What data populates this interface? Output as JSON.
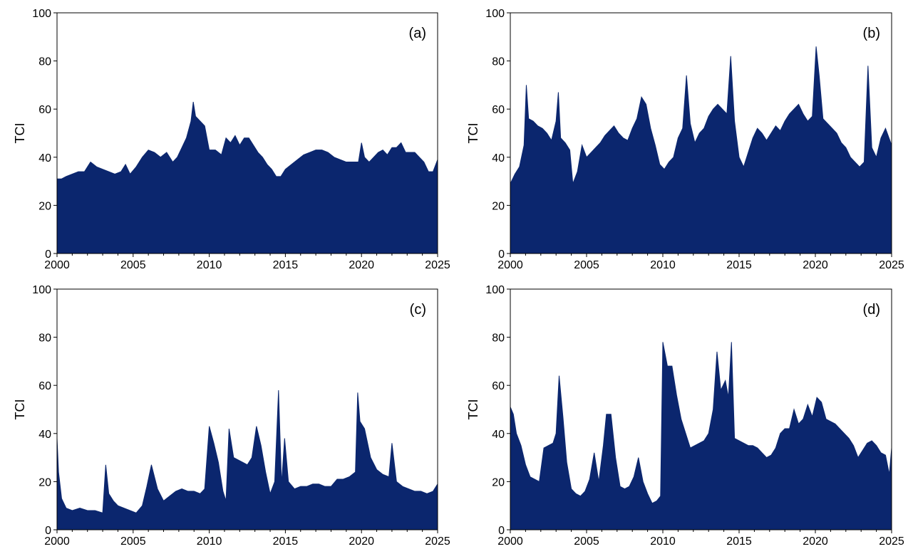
{
  "fill_color": "#0b266e",
  "axis_color": "#000000",
  "chart_data": [
    {
      "type": "area",
      "panel_label": "(a)",
      "ylabel": "TCI",
      "xlim": [
        2000,
        2025
      ],
      "ylim": [
        0,
        100
      ],
      "xticks": [
        2000,
        2005,
        2010,
        2015,
        2020,
        2025
      ],
      "yticks": [
        0,
        20,
        40,
        60,
        80,
        100
      ],
      "grid": false,
      "series": [
        {
          "x": [
            2000.0,
            2000.3,
            2000.6,
            2001.0,
            2001.4,
            2001.8,
            2002.2,
            2002.6,
            2003.0,
            2003.4,
            2003.8,
            2004.2,
            2004.5,
            2004.8,
            2005.2,
            2005.6,
            2006.0,
            2006.4,
            2006.8,
            2007.2,
            2007.6,
            2007.9,
            2008.2,
            2008.5,
            2008.8,
            2008.95,
            2009.1,
            2009.4,
            2009.7,
            2010.0,
            2010.4,
            2010.8,
            2011.1,
            2011.4,
            2011.7,
            2012.0,
            2012.3,
            2012.6,
            2012.9,
            2013.2,
            2013.5,
            2013.8,
            2014.1,
            2014.4,
            2014.7,
            2015.0,
            2015.4,
            2015.8,
            2016.2,
            2016.6,
            2017.0,
            2017.4,
            2017.8,
            2018.2,
            2018.6,
            2019.0,
            2019.4,
            2019.8,
            2020.0,
            2020.2,
            2020.5,
            2020.8,
            2021.1,
            2021.4,
            2021.7,
            2022.0,
            2022.3,
            2022.6,
            2022.9,
            2023.2,
            2023.5,
            2023.8,
            2024.1,
            2024.4,
            2024.7,
            2025.0
          ],
          "y": [
            31,
            31,
            32,
            33,
            34,
            34,
            38,
            36,
            35,
            34,
            33,
            34,
            37,
            33,
            36,
            40,
            43,
            42,
            40,
            42,
            38,
            40,
            44,
            48,
            55,
            63,
            57,
            55,
            53,
            43,
            43,
            41,
            48,
            46,
            49,
            45,
            48,
            48,
            45,
            42,
            40,
            37,
            35,
            32,
            32,
            35,
            37,
            39,
            41,
            42,
            43,
            43,
            42,
            40,
            39,
            38,
            38,
            38,
            46,
            40,
            38,
            40,
            42,
            43,
            41,
            44,
            44,
            46,
            42,
            42,
            42,
            40,
            38,
            34,
            34,
            39
          ]
        }
      ]
    },
    {
      "type": "area",
      "panel_label": "(b)",
      "ylabel": "TCI",
      "xlim": [
        2000,
        2025
      ],
      "ylim": [
        0,
        100
      ],
      "xticks": [
        2000,
        2005,
        2010,
        2015,
        2020,
        2025
      ],
      "yticks": [
        0,
        20,
        40,
        60,
        80,
        100
      ],
      "grid": false,
      "series": [
        {
          "x": [
            2000.0,
            2000.3,
            2000.6,
            2000.9,
            2001.05,
            2001.2,
            2001.5,
            2001.8,
            2002.1,
            2002.4,
            2002.7,
            2003.0,
            2003.15,
            2003.3,
            2003.6,
            2003.9,
            2004.1,
            2004.4,
            2004.7,
            2005.0,
            2005.3,
            2005.6,
            2005.9,
            2006.2,
            2006.5,
            2006.8,
            2007.1,
            2007.4,
            2007.7,
            2008.0,
            2008.3,
            2008.6,
            2008.9,
            2009.2,
            2009.5,
            2009.8,
            2010.1,
            2010.4,
            2010.7,
            2011.0,
            2011.3,
            2011.55,
            2011.8,
            2012.1,
            2012.4,
            2012.7,
            2013.0,
            2013.3,
            2013.6,
            2013.9,
            2014.2,
            2014.45,
            2014.7,
            2015.0,
            2015.3,
            2015.6,
            2015.9,
            2016.2,
            2016.5,
            2016.8,
            2017.1,
            2017.4,
            2017.7,
            2018.0,
            2018.3,
            2018.6,
            2018.9,
            2019.2,
            2019.5,
            2019.8,
            2020.05,
            2020.25,
            2020.5,
            2020.8,
            2021.1,
            2021.4,
            2021.7,
            2022.0,
            2022.3,
            2022.6,
            2022.9,
            2023.2,
            2023.45,
            2023.7,
            2024.0,
            2024.3,
            2024.6,
            2025.0
          ],
          "y": [
            29,
            33,
            36,
            45,
            70,
            56,
            55,
            53,
            52,
            50,
            47,
            55,
            67,
            48,
            46,
            43,
            29,
            34,
            45,
            40,
            42,
            44,
            46,
            49,
            51,
            53,
            50,
            48,
            47,
            52,
            56,
            65,
            62,
            52,
            45,
            37,
            35,
            38,
            40,
            48,
            52,
            74,
            54,
            46,
            50,
            52,
            57,
            60,
            62,
            60,
            58,
            82,
            55,
            40,
            36,
            42,
            48,
            52,
            50,
            47,
            50,
            53,
            51,
            55,
            58,
            60,
            62,
            58,
            55,
            57,
            86,
            74,
            56,
            54,
            52,
            50,
            46,
            44,
            40,
            38,
            36,
            38,
            78,
            44,
            40,
            48,
            52,
            45
          ]
        }
      ]
    },
    {
      "type": "area",
      "panel_label": "(c)",
      "ylabel": "TCI",
      "xlim": [
        2000,
        2025
      ],
      "ylim": [
        0,
        100
      ],
      "xticks": [
        2000,
        2005,
        2010,
        2015,
        2020,
        2025
      ],
      "yticks": [
        0,
        20,
        40,
        60,
        80,
        100
      ],
      "grid": false,
      "series": [
        {
          "x": [
            2000.0,
            2000.1,
            2000.3,
            2000.6,
            2001.0,
            2001.5,
            2002.0,
            2002.5,
            2003.0,
            2003.2,
            2003.4,
            2003.7,
            2004.0,
            2004.4,
            2004.8,
            2005.2,
            2005.6,
            2005.9,
            2006.2,
            2006.6,
            2007.0,
            2007.4,
            2007.8,
            2008.2,
            2008.6,
            2009.0,
            2009.4,
            2009.7,
            2010.0,
            2010.3,
            2010.6,
            2010.9,
            2011.1,
            2011.3,
            2011.6,
            2011.9,
            2012.2,
            2012.5,
            2012.8,
            2013.1,
            2013.4,
            2013.7,
            2014.0,
            2014.3,
            2014.55,
            2014.75,
            2014.95,
            2015.2,
            2015.6,
            2016.0,
            2016.4,
            2016.8,
            2017.2,
            2017.6,
            2018.0,
            2018.4,
            2018.8,
            2019.2,
            2019.6,
            2019.75,
            2019.9,
            2020.2,
            2020.6,
            2021.0,
            2021.4,
            2021.8,
            2022.0,
            2022.3,
            2022.7,
            2023.1,
            2023.5,
            2023.9,
            2024.3,
            2024.7,
            2025.0
          ],
          "y": [
            38,
            24,
            13,
            9,
            8,
            9,
            8,
            8,
            7,
            27,
            15,
            12,
            10,
            9,
            8,
            7,
            10,
            18,
            27,
            17,
            12,
            14,
            16,
            17,
            16,
            16,
            15,
            17,
            43,
            36,
            28,
            16,
            12,
            42,
            30,
            29,
            28,
            27,
            30,
            43,
            35,
            24,
            15,
            20,
            58,
            19,
            38,
            20,
            17,
            18,
            18,
            19,
            19,
            18,
            18,
            21,
            21,
            22,
            24,
            57,
            45,
            42,
            30,
            25,
            23,
            22,
            36,
            20,
            18,
            17,
            16,
            16,
            15,
            16,
            19
          ]
        }
      ]
    },
    {
      "type": "area",
      "panel_label": "(d)",
      "ylabel": "TCI",
      "xlim": [
        2000,
        2025
      ],
      "ylim": [
        0,
        100
      ],
      "xticks": [
        2000,
        2005,
        2010,
        2015,
        2020,
        2025
      ],
      "yticks": [
        0,
        20,
        40,
        60,
        80,
        100
      ],
      "grid": false,
      "series": [
        {
          "x": [
            2000.0,
            2000.2,
            2000.4,
            2000.7,
            2001.0,
            2001.3,
            2001.6,
            2001.9,
            2002.2,
            2002.5,
            2002.8,
            2003.0,
            2003.2,
            2003.45,
            2003.7,
            2004.0,
            2004.3,
            2004.6,
            2004.9,
            2005.2,
            2005.5,
            2005.8,
            2006.1,
            2006.3,
            2006.6,
            2006.9,
            2007.2,
            2007.5,
            2007.8,
            2008.1,
            2008.4,
            2008.7,
            2009.0,
            2009.3,
            2009.6,
            2009.85,
            2010.0,
            2010.3,
            2010.6,
            2010.9,
            2011.2,
            2011.5,
            2011.8,
            2012.1,
            2012.4,
            2012.7,
            2013.0,
            2013.3,
            2013.55,
            2013.8,
            2014.1,
            2014.3,
            2014.5,
            2014.7,
            2015.0,
            2015.3,
            2015.6,
            2015.9,
            2016.2,
            2016.5,
            2016.8,
            2017.1,
            2017.4,
            2017.7,
            2018.0,
            2018.3,
            2018.6,
            2018.9,
            2019.2,
            2019.5,
            2019.8,
            2020.1,
            2020.4,
            2020.7,
            2021.0,
            2021.3,
            2021.6,
            2021.9,
            2022.2,
            2022.5,
            2022.8,
            2023.1,
            2023.4,
            2023.7,
            2024.0,
            2024.3,
            2024.6,
            2024.85,
            2025.0
          ],
          "y": [
            51,
            48,
            40,
            35,
            27,
            22,
            21,
            20,
            34,
            35,
            36,
            40,
            64,
            47,
            28,
            17,
            15,
            14,
            16,
            21,
            32,
            20,
            35,
            48,
            48,
            30,
            18,
            17,
            18,
            22,
            30,
            20,
            15,
            11,
            12,
            14,
            78,
            68,
            68,
            56,
            46,
            40,
            34,
            35,
            36,
            37,
            40,
            50,
            74,
            58,
            62,
            55,
            78,
            38,
            37,
            36,
            35,
            35,
            34,
            32,
            30,
            31,
            34,
            40,
            42,
            42,
            50,
            44,
            46,
            52,
            47,
            55,
            53,
            46,
            45,
            44,
            42,
            40,
            38,
            35,
            30,
            33,
            36,
            37,
            35,
            32,
            31,
            23,
            34
          ]
        }
      ]
    }
  ]
}
